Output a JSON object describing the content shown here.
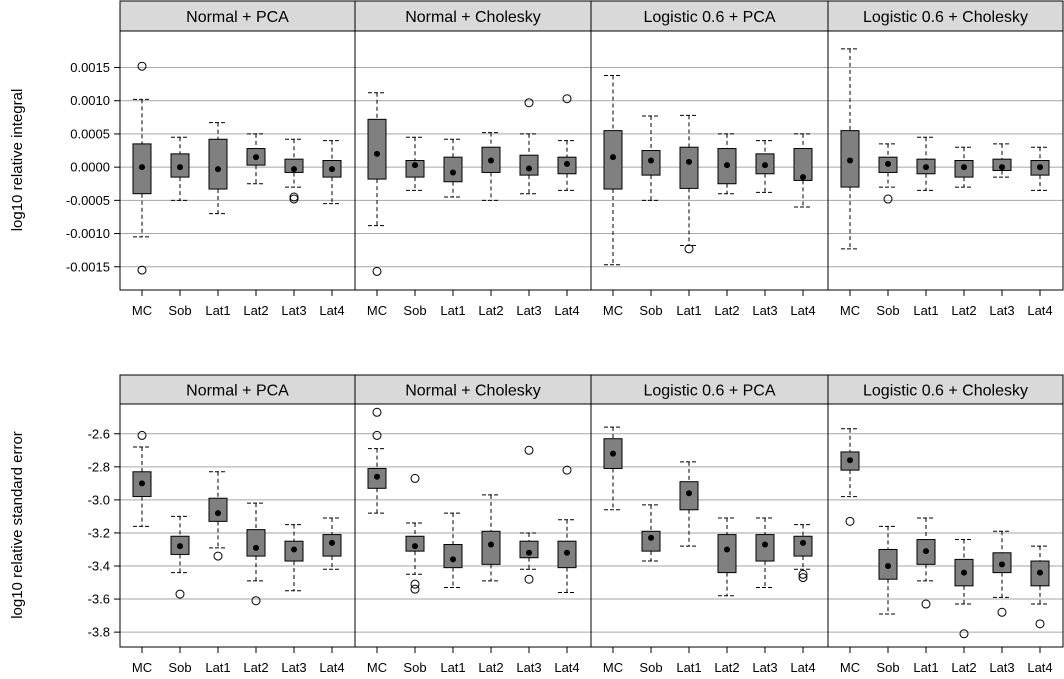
{
  "chart_data": [
    {
      "type": "boxplot",
      "ylabel": "log10 relative integral",
      "ylim": [
        -0.00185,
        0.00205
      ],
      "yticks": [
        -0.0015,
        -0.001,
        -0.0005,
        0.0,
        0.0005,
        0.001,
        0.0015
      ],
      "ytick_labels": [
        "-0.0015",
        "-0.0010",
        "-0.0005",
        "0.0000",
        "0.0005",
        "0.0010",
        "0.0015"
      ],
      "categories": [
        "MC",
        "Sob",
        "Lat1",
        "Lat2",
        "Lat3",
        "Lat4"
      ],
      "panels": [
        {
          "title": "Normal + PCA",
          "boxes": [
            {
              "whisker_low": -0.00105,
              "q1": -0.0004,
              "median": 0.0,
              "q3": 0.00035,
              "whisker_high": 0.00102,
              "outliers": [
                0.00152,
                -0.00155
              ]
            },
            {
              "whisker_low": -0.0005,
              "q1": -0.00015,
              "median": 0.0,
              "q3": 0.0002,
              "whisker_high": 0.00045,
              "outliers": []
            },
            {
              "whisker_low": -0.0007,
              "q1": -0.00033,
              "median": -3e-05,
              "q3": 0.00042,
              "whisker_high": 0.00067,
              "outliers": []
            },
            {
              "whisker_low": -0.00025,
              "q1": 3e-05,
              "median": 0.00015,
              "q3": 0.00028,
              "whisker_high": 0.0005,
              "outliers": []
            },
            {
              "whisker_low": -0.0003,
              "q1": -8e-05,
              "median": -3e-05,
              "q3": 0.00012,
              "whisker_high": 0.00042,
              "outliers": [
                -0.00045,
                -0.00048
              ]
            },
            {
              "whisker_low": -0.00055,
              "q1": -0.00015,
              "median": -3e-05,
              "q3": 0.0001,
              "whisker_high": 0.0004,
              "outliers": []
            }
          ]
        },
        {
          "title": "Normal + Cholesky",
          "boxes": [
            {
              "whisker_low": -0.00088,
              "q1": -0.00018,
              "median": 0.0002,
              "q3": 0.00072,
              "whisker_high": 0.00112,
              "outliers": [
                -0.00157
              ]
            },
            {
              "whisker_low": -0.00035,
              "q1": -0.00015,
              "median": 3e-05,
              "q3": 0.0001,
              "whisker_high": 0.00045,
              "outliers": []
            },
            {
              "whisker_low": -0.00045,
              "q1": -0.00022,
              "median": -8e-05,
              "q3": 0.00015,
              "whisker_high": 0.00042,
              "outliers": []
            },
            {
              "whisker_low": -0.0005,
              "q1": -8e-05,
              "median": 0.0001,
              "q3": 0.0003,
              "whisker_high": 0.00052,
              "outliers": []
            },
            {
              "whisker_low": -0.0004,
              "q1": -0.00012,
              "median": -2e-05,
              "q3": 0.00018,
              "whisker_high": 0.0005,
              "outliers": [
                0.00097
              ]
            },
            {
              "whisker_low": -0.00035,
              "q1": -0.0001,
              "median": 5e-05,
              "q3": 0.00015,
              "whisker_high": 0.0004,
              "outliers": [
                0.00103
              ]
            }
          ]
        },
        {
          "title": "Logistic 0.6 + PCA",
          "boxes": [
            {
              "whisker_low": -0.00147,
              "q1": -0.00033,
              "median": 0.00015,
              "q3": 0.00055,
              "whisker_high": 0.00138,
              "outliers": []
            },
            {
              "whisker_low": -0.0005,
              "q1": -0.00012,
              "median": 0.0001,
              "q3": 0.00025,
              "whisker_high": 0.00077,
              "outliers": []
            },
            {
              "whisker_low": -0.00118,
              "q1": -0.00032,
              "median": 8e-05,
              "q3": 0.0003,
              "whisker_high": 0.00078,
              "outliers": [
                -0.00123
              ]
            },
            {
              "whisker_low": -0.0004,
              "q1": -0.00025,
              "median": 3e-05,
              "q3": 0.00028,
              "whisker_high": 0.0005,
              "outliers": []
            },
            {
              "whisker_low": -0.00038,
              "q1": -0.0001,
              "median": 3e-05,
              "q3": 0.0002,
              "whisker_high": 0.0004,
              "outliers": []
            },
            {
              "whisker_low": -0.0006,
              "q1": -0.0002,
              "median": -0.00015,
              "q3": 0.00028,
              "whisker_high": 0.0005,
              "outliers": []
            }
          ]
        },
        {
          "title": "Logistic 0.6 + Cholesky",
          "boxes": [
            {
              "whisker_low": -0.00123,
              "q1": -0.0003,
              "median": 0.0001,
              "q3": 0.00055,
              "whisker_high": 0.00178,
              "outliers": []
            },
            {
              "whisker_low": -0.0003,
              "q1": -8e-05,
              "median": 5e-05,
              "q3": 0.00015,
              "whisker_high": 0.00035,
              "outliers": [
                -0.00048
              ]
            },
            {
              "whisker_low": -0.00035,
              "q1": -0.0001,
              "median": 0.0,
              "q3": 0.00012,
              "whisker_high": 0.00045,
              "outliers": []
            },
            {
              "whisker_low": -0.0003,
              "q1": -0.00015,
              "median": 0.0,
              "q3": 0.0001,
              "whisker_high": 0.0003,
              "outliers": []
            },
            {
              "whisker_low": -0.00015,
              "q1": -5e-05,
              "median": 0.0,
              "q3": 0.00012,
              "whisker_high": 0.00035,
              "outliers": []
            },
            {
              "whisker_low": -0.00035,
              "q1": -0.00012,
              "median": 0.0,
              "q3": 0.0001,
              "whisker_high": 0.0003,
              "outliers": []
            }
          ]
        }
      ]
    },
    {
      "type": "boxplot",
      "ylabel": "log10 relative standard error",
      "ylim": [
        -3.89,
        -2.42
      ],
      "yticks": [
        -3.8,
        -3.6,
        -3.4,
        -3.2,
        -3.0,
        -2.8,
        -2.6
      ],
      "ytick_labels": [
        "-3.8",
        "-3.6",
        "-3.4",
        "-3.2",
        "-3.0",
        "-2.8",
        "-2.6"
      ],
      "categories": [
        "MC",
        "Sob",
        "Lat1",
        "Lat2",
        "Lat3",
        "Lat4"
      ],
      "panels": [
        {
          "title": "Normal + PCA",
          "boxes": [
            {
              "whisker_low": -3.16,
              "q1": -2.98,
              "median": -2.9,
              "q3": -2.83,
              "whisker_high": -2.68,
              "outliers": [
                -2.61
              ]
            },
            {
              "whisker_low": -3.44,
              "q1": -3.33,
              "median": -3.28,
              "q3": -3.22,
              "whisker_high": -3.1,
              "outliers": [
                -3.57
              ]
            },
            {
              "whisker_low": -3.29,
              "q1": -3.13,
              "median": -3.08,
              "q3": -2.99,
              "whisker_high": -2.83,
              "outliers": [
                -3.34
              ]
            },
            {
              "whisker_low": -3.49,
              "q1": -3.34,
              "median": -3.29,
              "q3": -3.18,
              "whisker_high": -3.02,
              "outliers": [
                -3.61
              ]
            },
            {
              "whisker_low": -3.55,
              "q1": -3.37,
              "median": -3.3,
              "q3": -3.25,
              "whisker_high": -3.15,
              "outliers": []
            },
            {
              "whisker_low": -3.42,
              "q1": -3.34,
              "median": -3.26,
              "q3": -3.21,
              "whisker_high": -3.11,
              "outliers": []
            }
          ]
        },
        {
          "title": "Normal + Cholesky",
          "boxes": [
            {
              "whisker_low": -3.08,
              "q1": -2.93,
              "median": -2.86,
              "q3": -2.81,
              "whisker_high": -2.69,
              "outliers": [
                -2.61,
                -2.47
              ]
            },
            {
              "whisker_low": -3.45,
              "q1": -3.31,
              "median": -3.28,
              "q3": -3.22,
              "whisker_high": -3.14,
              "outliers": [
                -2.87,
                -3.51,
                -3.54
              ]
            },
            {
              "whisker_low": -3.53,
              "q1": -3.41,
              "median": -3.36,
              "q3": -3.27,
              "whisker_high": -3.08,
              "outliers": []
            },
            {
              "whisker_low": -3.49,
              "q1": -3.39,
              "median": -3.27,
              "q3": -3.19,
              "whisker_high": -2.97,
              "outliers": []
            },
            {
              "whisker_low": -3.42,
              "q1": -3.35,
              "median": -3.32,
              "q3": -3.25,
              "whisker_high": -3.2,
              "outliers": [
                -2.7,
                -3.48
              ]
            },
            {
              "whisker_low": -3.56,
              "q1": -3.41,
              "median": -3.32,
              "q3": -3.25,
              "whisker_high": -3.12,
              "outliers": [
                -2.82
              ]
            }
          ]
        },
        {
          "title": "Logistic 0.6 + PCA",
          "boxes": [
            {
              "whisker_low": -3.06,
              "q1": -2.81,
              "median": -2.72,
              "q3": -2.63,
              "whisker_high": -2.56,
              "outliers": []
            },
            {
              "whisker_low": -3.37,
              "q1": -3.31,
              "median": -3.23,
              "q3": -3.19,
              "whisker_high": -3.03,
              "outliers": []
            },
            {
              "whisker_low": -3.28,
              "q1": -3.06,
              "median": -2.96,
              "q3": -2.89,
              "whisker_high": -2.77,
              "outliers": []
            },
            {
              "whisker_low": -3.58,
              "q1": -3.44,
              "median": -3.3,
              "q3": -3.21,
              "whisker_high": -3.11,
              "outliers": []
            },
            {
              "whisker_low": -3.53,
              "q1": -3.37,
              "median": -3.27,
              "q3": -3.21,
              "whisker_high": -3.11,
              "outliers": []
            },
            {
              "whisker_low": -3.42,
              "q1": -3.34,
              "median": -3.26,
              "q3": -3.22,
              "whisker_high": -3.15,
              "outliers": [
                -3.45,
                -3.47
              ]
            }
          ]
        },
        {
          "title": "Logistic 0.6 + Cholesky",
          "boxes": [
            {
              "whisker_low": -2.98,
              "q1": -2.82,
              "median": -2.76,
              "q3": -2.71,
              "whisker_high": -2.57,
              "outliers": [
                -3.13
              ]
            },
            {
              "whisker_low": -3.69,
              "q1": -3.48,
              "median": -3.4,
              "q3": -3.3,
              "whisker_high": -3.16,
              "outliers": []
            },
            {
              "whisker_low": -3.49,
              "q1": -3.39,
              "median": -3.31,
              "q3": -3.24,
              "whisker_high": -3.11,
              "outliers": [
                -3.63
              ]
            },
            {
              "whisker_low": -3.63,
              "q1": -3.52,
              "median": -3.44,
              "q3": -3.36,
              "whisker_high": -3.24,
              "outliers": [
                -3.81
              ]
            },
            {
              "whisker_low": -3.59,
              "q1": -3.44,
              "median": -3.39,
              "q3": -3.32,
              "whisker_high": -3.19,
              "outliers": [
                -3.68
              ]
            },
            {
              "whisker_low": -3.63,
              "q1": -3.52,
              "median": -3.44,
              "q3": -3.37,
              "whisker_high": -3.28,
              "outliers": [
                -3.75
              ]
            }
          ]
        }
      ]
    }
  ],
  "colors": {
    "box_fill": "#808080",
    "strip_fill": "#d9d9d9",
    "grid": "#a6a6a6",
    "ink": "#000000"
  }
}
